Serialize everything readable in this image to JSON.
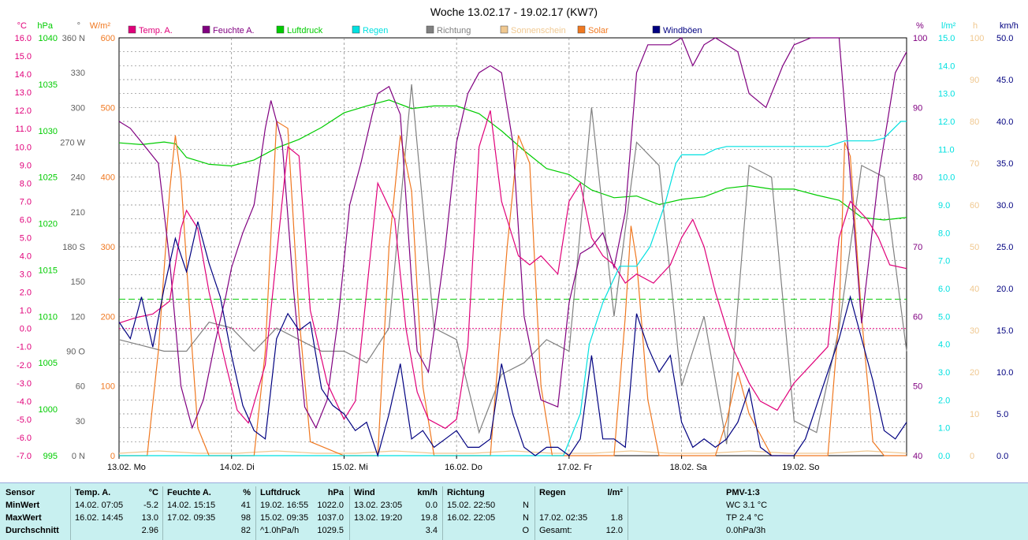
{
  "chart_data": {
    "type": "line",
    "title": "Woche 13.02.17 - 19.02.17 (KW7)",
    "legend": [
      "Temp. A.",
      "Feuchte A.",
      "Luftdruck",
      "Regen",
      "Richtung",
      "Sonnenschein",
      "Solar",
      "Windböen"
    ],
    "colors": {
      "temp": "#e0007a",
      "hum": "#800080",
      "pressure": "#00cc00",
      "rain": "#00e0e0",
      "dir": "#808080",
      "sun": "#f0c890",
      "solar": "#f07820",
      "gust": "#000080",
      "grid": "#808080",
      "bg": "#ffffff"
    },
    "left_axes": [
      {
        "unit": "°C",
        "color": "#e0007a",
        "ticks": [
          "16.0",
          "15.0",
          "14.0",
          "13.0",
          "12.0",
          "11.0",
          "10.0",
          "9.0",
          "8.0",
          "7.0",
          "6.0",
          "5.0",
          "4.0",
          "3.0",
          "2.0",
          "1.0",
          "0.0",
          "-1.0",
          "-2.0",
          "-3.0",
          "-4.0",
          "-5.0",
          "-6.0",
          "-7.0"
        ]
      },
      {
        "unit": "hPa",
        "color": "#00cc00",
        "ticks": [
          "1040",
          "1035",
          "1030",
          "1025",
          "1020",
          "1015",
          "1010",
          "1005",
          "1000",
          "995"
        ]
      },
      {
        "unit": "°",
        "color": "#606060",
        "ticks": [
          "360 N",
          "330",
          "300",
          "270 W",
          "240",
          "210",
          "180 S",
          "150",
          "120",
          "90 O",
          "60",
          "30",
          "0 N"
        ]
      },
      {
        "unit": "W/m²",
        "color": "#f07820",
        "ticks": [
          "600",
          "500",
          "400",
          "300",
          "200",
          "100",
          "0"
        ]
      }
    ],
    "right_axes": [
      {
        "unit": "%",
        "color": "#800080",
        "ticks": [
          "100",
          "90",
          "80",
          "70",
          "60",
          "50",
          "40"
        ]
      },
      {
        "unit": "l/m²",
        "color": "#00e0e0",
        "ticks": [
          "15.0",
          "14.0",
          "13.0",
          "12.0",
          "11.0",
          "10.0",
          "9.0",
          "8.0",
          "7.0",
          "6.0",
          "5.0",
          "4.0",
          "3.0",
          "2.0",
          "1.0",
          "0.0"
        ]
      },
      {
        "unit": "h",
        "color": "#f0c890",
        "ticks": [
          "100",
          "90",
          "80",
          "70",
          "60",
          "50",
          "40",
          "30",
          "20",
          "10",
          "0"
        ]
      },
      {
        "unit": "km/h",
        "color": "#000080",
        "ticks": [
          "50.0",
          "45.0",
          "40.0",
          "35.0",
          "30.0",
          "25.0",
          "20.0",
          "15.0",
          "10.0",
          "5.0",
          "0.0"
        ]
      }
    ],
    "x_ticks": [
      "13.02. Mo",
      "14.02. Di",
      "15.02. Mi",
      "16.02. Do",
      "17.02. Fr",
      "18.02. Sa",
      "19.02. So"
    ],
    "series": [
      {
        "key": "temp",
        "name": "Temp. A.",
        "x": [
          0,
          0.15,
          0.3,
          0.45,
          0.55,
          0.6,
          0.7,
          0.8,
          0.95,
          1.05,
          1.15,
          1.3,
          1.5,
          1.6,
          1.7,
          1.85,
          2.0,
          2.1,
          2.2,
          2.3,
          2.45,
          2.55,
          2.65,
          2.75,
          2.9,
          3.0,
          3.1,
          3.2,
          3.3,
          3.4,
          3.55,
          3.65,
          3.75,
          3.9,
          4.0,
          4.1,
          4.2,
          4.3,
          4.4,
          4.5,
          4.6,
          4.75,
          4.9,
          5.0,
          5.1,
          5.2,
          5.3,
          5.45,
          5.6,
          5.7,
          5.85,
          6.0,
          6.15,
          6.3,
          6.4,
          6.5,
          6.65,
          6.75,
          6.85,
          7.0
        ],
        "y": [
          0.3,
          0.6,
          0.8,
          1.5,
          5.5,
          6.5,
          5.5,
          2.0,
          -2.0,
          -4.5,
          -5.2,
          -2.0,
          10.0,
          9.5,
          1.0,
          -3.0,
          -5.0,
          -4.0,
          2.0,
          8.0,
          6.0,
          0.0,
          -3.5,
          -5.0,
          -5.5,
          -5.0,
          -1.0,
          10.0,
          12.0,
          7.0,
          4.0,
          3.5,
          4.0,
          3.0,
          7.0,
          8.0,
          5.0,
          4.0,
          3.5,
          2.5,
          3.0,
          2.5,
          3.5,
          5.0,
          6.0,
          4.5,
          2.0,
          -1.0,
          -3.0,
          -4.0,
          -4.5,
          -3.0,
          -2.0,
          -1.0,
          5.0,
          7.0,
          6.0,
          5.0,
          3.5,
          3.3
        ]
      },
      {
        "key": "hum",
        "name": "Feuchte A.",
        "x": [
          0,
          0.1,
          0.25,
          0.35,
          0.45,
          0.55,
          0.65,
          0.75,
          0.85,
          0.95,
          1.0,
          1.1,
          1.2,
          1.3,
          1.35,
          1.45,
          1.55,
          1.65,
          1.75,
          1.85,
          1.95,
          2.05,
          2.15,
          2.25,
          2.3,
          2.4,
          2.5,
          2.6,
          2.65,
          2.75,
          2.9,
          3.0,
          3.1,
          3.2,
          3.3,
          3.4,
          3.5,
          3.6,
          3.75,
          3.9,
          4.0,
          4.1,
          4.2,
          4.3,
          4.4,
          4.5,
          4.6,
          4.7,
          4.8,
          4.9,
          5.0,
          5.1,
          5.2,
          5.3,
          5.4,
          5.5,
          5.6,
          5.75,
          5.9,
          6.0,
          6.15,
          6.3,
          6.4,
          6.5,
          6.6,
          6.75,
          6.9,
          7.0
        ],
        "y": [
          88,
          87,
          84,
          82,
          68,
          50,
          44,
          48,
          56,
          63,
          67,
          72,
          76,
          87,
          91,
          85,
          64,
          47,
          44,
          48,
          60,
          76,
          82,
          89,
          92,
          93,
          89,
          65,
          55,
          52,
          70,
          85,
          92,
          95,
          96,
          95,
          85,
          60,
          48,
          47,
          62,
          69,
          70,
          72,
          67,
          75,
          95,
          99,
          99,
          99,
          100,
          96,
          99,
          100,
          99,
          98,
          92,
          90,
          96,
          99,
          100,
          100,
          100,
          80,
          59,
          80,
          95,
          98
        ]
      },
      {
        "key": "pressure",
        "name": "Luftdruck",
        "x": [
          0,
          0.2,
          0.4,
          0.5,
          0.6,
          0.8,
          1.0,
          1.2,
          1.4,
          1.6,
          1.8,
          2.0,
          2.2,
          2.4,
          2.6,
          2.8,
          3.0,
          3.2,
          3.4,
          3.6,
          3.8,
          4.0,
          4.2,
          4.4,
          4.6,
          4.8,
          5.0,
          5.2,
          5.4,
          5.6,
          5.8,
          6.0,
          6.2,
          6.4,
          6.6,
          6.8,
          7.0
        ],
        "y": [
          1031.5,
          1031.3,
          1031.6,
          1031.4,
          1029.8,
          1029,
          1028.8,
          1029.5,
          1030.9,
          1031.9,
          1033.3,
          1035,
          1035.8,
          1036.5,
          1035.5,
          1035.8,
          1035.8,
          1034.9,
          1032.9,
          1030.6,
          1028.5,
          1027.8,
          1026,
          1025.1,
          1025.3,
          1024.3,
          1024.9,
          1025.2,
          1026.2,
          1026.5,
          1026.1,
          1026.1,
          1025.4,
          1024.8,
          1022.8,
          1022.5,
          1022.8
        ]
      },
      {
        "key": "rain",
        "name": "Regen",
        "x": [
          0,
          3.95,
          4.1,
          4.18,
          4.3,
          4.45,
          4.55,
          4.6,
          4.72,
          4.85,
          4.95,
          5.0,
          5.2,
          5.3,
          5.4,
          6.3,
          6.45,
          6.6,
          6.7,
          6.8,
          6.9,
          6.95,
          7.0
        ],
        "y": [
          0,
          0,
          1.5,
          4.0,
          5.5,
          6.8,
          6.8,
          6.8,
          7.5,
          9.0,
          10.5,
          10.8,
          10.8,
          11.0,
          11.1,
          11.1,
          11.3,
          11.3,
          11.3,
          11.4,
          11.8,
          12.0,
          12.0
        ]
      },
      {
        "key": "dir",
        "name": "Richtung",
        "x": [
          0,
          0.2,
          0.4,
          0.6,
          0.8,
          1.0,
          1.2,
          1.4,
          1.6,
          1.8,
          2.0,
          2.2,
          2.4,
          2.6,
          2.8,
          3.0,
          3.2,
          3.4,
          3.6,
          3.8,
          4.0,
          4.2,
          4.4,
          4.6,
          4.8,
          5.0,
          5.2,
          5.4,
          5.6,
          5.8,
          6.0,
          6.2,
          6.4,
          6.6,
          6.8,
          7.0
        ],
        "y": [
          100,
          95,
          90,
          90,
          115,
          110,
          90,
          110,
          100,
          90,
          90,
          80,
          110,
          320,
          110,
          100,
          20,
          70,
          80,
          100,
          90,
          300,
          120,
          270,
          250,
          60,
          120,
          10,
          250,
          240,
          30,
          20,
          110,
          250,
          240,
          90
        ]
      },
      {
        "key": "sun",
        "name": "Sonnenschein",
        "x": [
          0,
          0.35,
          0.7,
          1.05,
          1.4,
          1.75,
          2.1,
          2.45,
          2.8,
          3.15,
          3.5,
          3.85,
          4.2,
          4.55,
          4.9,
          5.25,
          5.6,
          5.95,
          6.3,
          6.65,
          7.0
        ],
        "y": [
          0,
          1,
          0,
          0,
          1,
          0,
          0,
          1,
          0,
          0,
          1,
          0,
          0,
          1,
          0,
          0,
          1,
          0,
          0,
          1,
          0
        ]
      },
      {
        "key": "solar",
        "name": "Solar",
        "x": [
          0,
          0.25,
          0.35,
          0.45,
          0.5,
          0.55,
          0.65,
          0.7,
          0.8,
          1.0,
          1.2,
          1.3,
          1.4,
          1.5,
          1.6,
          1.7,
          2.0,
          2.3,
          2.4,
          2.5,
          2.6,
          2.7,
          2.8,
          3.0,
          3.3,
          3.45,
          3.55,
          3.65,
          3.75,
          3.85,
          4.0,
          4.4,
          4.5,
          4.55,
          4.6,
          4.7,
          4.8,
          5.0,
          5.3,
          5.4,
          5.5,
          5.6,
          5.7,
          5.8,
          6.0,
          6.3,
          6.4,
          6.45,
          6.5,
          6.6,
          6.7,
          6.8,
          7.0
        ],
        "y": [
          0,
          0,
          150,
          380,
          460,
          400,
          150,
          40,
          0,
          0,
          0,
          150,
          480,
          470,
          200,
          20,
          0,
          0,
          300,
          460,
          380,
          100,
          0,
          0,
          0,
          300,
          460,
          420,
          100,
          0,
          0,
          0,
          200,
          330,
          280,
          80,
          0,
          0,
          0,
          50,
          120,
          60,
          30,
          0,
          0,
          0,
          200,
          450,
          430,
          200,
          20,
          0,
          0
        ]
      },
      {
        "key": "gust",
        "name": "Windböen",
        "x": [
          0,
          0.1,
          0.2,
          0.3,
          0.4,
          0.5,
          0.6,
          0.7,
          0.8,
          0.9,
          1.0,
          1.1,
          1.2,
          1.3,
          1.4,
          1.5,
          1.6,
          1.7,
          1.8,
          1.9,
          2.0,
          2.1,
          2.2,
          2.3,
          2.4,
          2.5,
          2.6,
          2.7,
          2.8,
          2.9,
          3.0,
          3.1,
          3.2,
          3.3,
          3.4,
          3.5,
          3.6,
          3.7,
          3.8,
          3.9,
          4.0,
          4.1,
          4.2,
          4.3,
          4.4,
          4.5,
          4.6,
          4.7,
          4.8,
          4.9,
          5.0,
          5.1,
          5.2,
          5.3,
          5.4,
          5.5,
          5.6,
          5.7,
          5.8,
          5.9,
          6.0,
          6.1,
          6.2,
          6.3,
          6.4,
          6.5,
          6.6,
          6.7,
          6.8,
          6.9,
          7.0
        ],
        "y": [
          16,
          14,
          19,
          13,
          20,
          26,
          22,
          28,
          23,
          19,
          12,
          6,
          3,
          2,
          14,
          17,
          15,
          16,
          8,
          6,
          5,
          3,
          4,
          0,
          5,
          11,
          2,
          3,
          1,
          2,
          3,
          1,
          1,
          2,
          11,
          5,
          1,
          0,
          1,
          1,
          0,
          2,
          12,
          2,
          2,
          1,
          17,
          13,
          10,
          12,
          4,
          1,
          2,
          1,
          2,
          4,
          8,
          1,
          0,
          0,
          0,
          2,
          6,
          10,
          14,
          19,
          14,
          9,
          3,
          2,
          4
        ]
      }
    ],
    "reference_lines": [
      {
        "key": "pressure",
        "value": 1013.25,
        "style": "dashed"
      },
      {
        "key": "temp",
        "value": 0,
        "style": "dotted"
      }
    ],
    "ylim": {
      "temp": [
        -7,
        16
      ],
      "pressure": [
        995,
        1043.75
      ],
      "dir": [
        0,
        360
      ],
      "solar": [
        0,
        600
      ],
      "hum": [
        40,
        100
      ],
      "rain": [
        0,
        15
      ],
      "sun": [
        0,
        100
      ],
      "gust": [
        0,
        50
      ]
    },
    "xlim": [
      0,
      7
    ],
    "grid": true
  },
  "stats": {
    "headers": [
      "Sensor",
      "Temp. A.",
      "°C",
      "Feuchte A.",
      "%",
      "Luftdruck",
      "hPa",
      "Wind",
      "km/h",
      "Richtung",
      "Regen",
      "l/m²",
      "PMV-1:3"
    ],
    "row_labels": [
      "MinWert",
      "MaxWert",
      "Durchschnitt"
    ],
    "temp": [
      [
        "14.02.  07:05",
        "-5.2"
      ],
      [
        "16.02.  14:45",
        "13.0"
      ],
      [
        "",
        "2.96"
      ]
    ],
    "hum": [
      [
        "14.02.  15:15",
        "41"
      ],
      [
        "17.02.  09:35",
        "98"
      ],
      [
        "",
        "82"
      ]
    ],
    "pressure": [
      [
        "19.02.  16:55",
        "1022.0"
      ],
      [
        "15.02.  09:35",
        "1037.0"
      ],
      [
        "^1.0hPa/h",
        "1029.5"
      ]
    ],
    "wind": [
      [
        "13.02.  23:05",
        "0.0"
      ],
      [
        "13.02.  19:20",
        "19.8"
      ],
      [
        "",
        "3.4"
      ]
    ],
    "dir": [
      [
        "15.02.  22:50",
        "N"
      ],
      [
        "16.02.  22:05",
        "N"
      ],
      [
        "",
        "O"
      ]
    ],
    "rain": [
      [
        "",
        ""
      ],
      [
        "17.02.  02:35",
        "1.8"
      ],
      [
        "Gesamt:",
        "12.0"
      ]
    ],
    "pmv": [
      "WC 3.1 °C",
      "TP 2.4 °C",
      "0.0hPa/3h"
    ]
  }
}
